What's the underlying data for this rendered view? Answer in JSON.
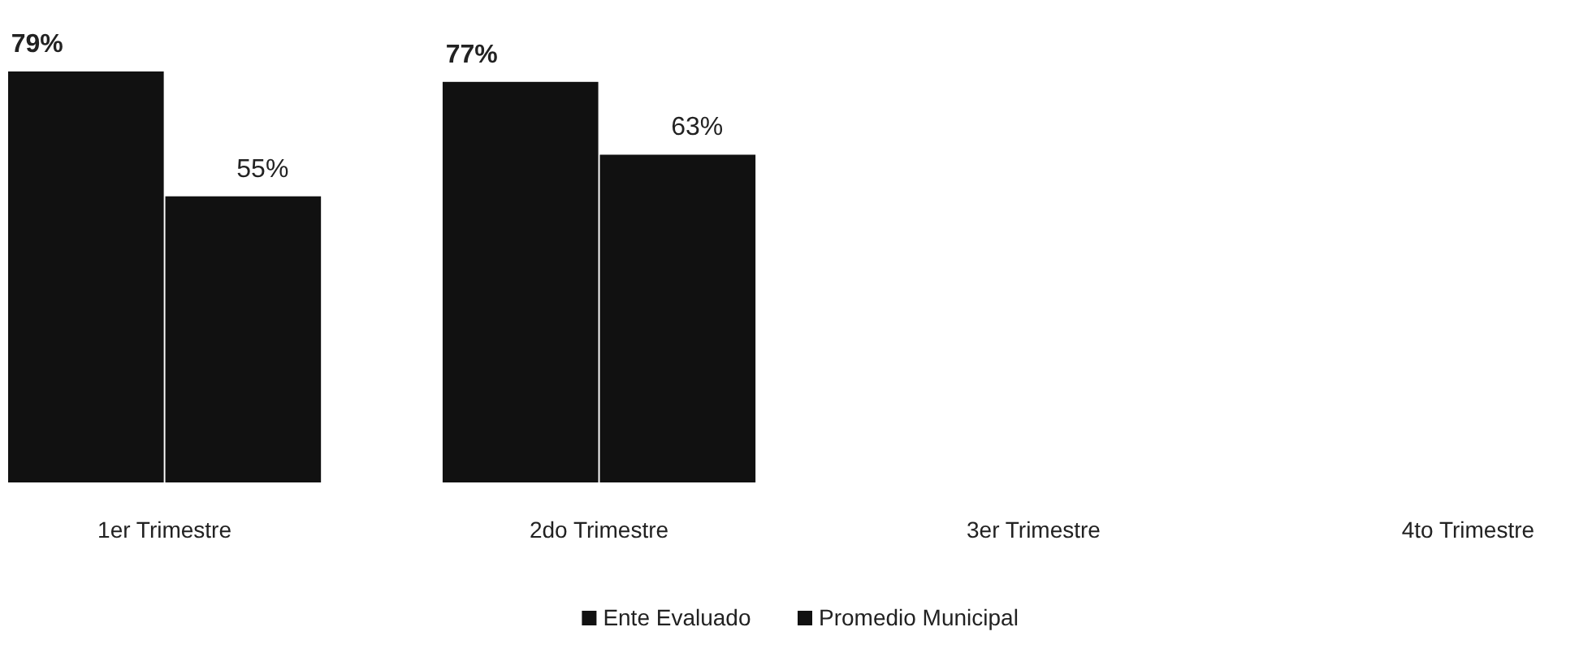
{
  "chart_data": {
    "type": "bar",
    "categories": [
      "1er Trimestre",
      "2do Trimestre",
      "3er Trimestre",
      "4to Trimestre"
    ],
    "series": [
      {
        "name": "Ente Evaluado",
        "color": "#111111",
        "values": [
          79,
          77,
          null,
          null
        ],
        "value_labels": [
          "79%",
          "77%",
          null,
          null
        ]
      },
      {
        "name": "Promedio Municipal",
        "color": "#111111",
        "values": [
          55,
          63,
          null,
          null
        ],
        "value_labels": [
          "55%",
          "63%",
          null,
          null
        ]
      }
    ],
    "legend": "bottom"
  }
}
